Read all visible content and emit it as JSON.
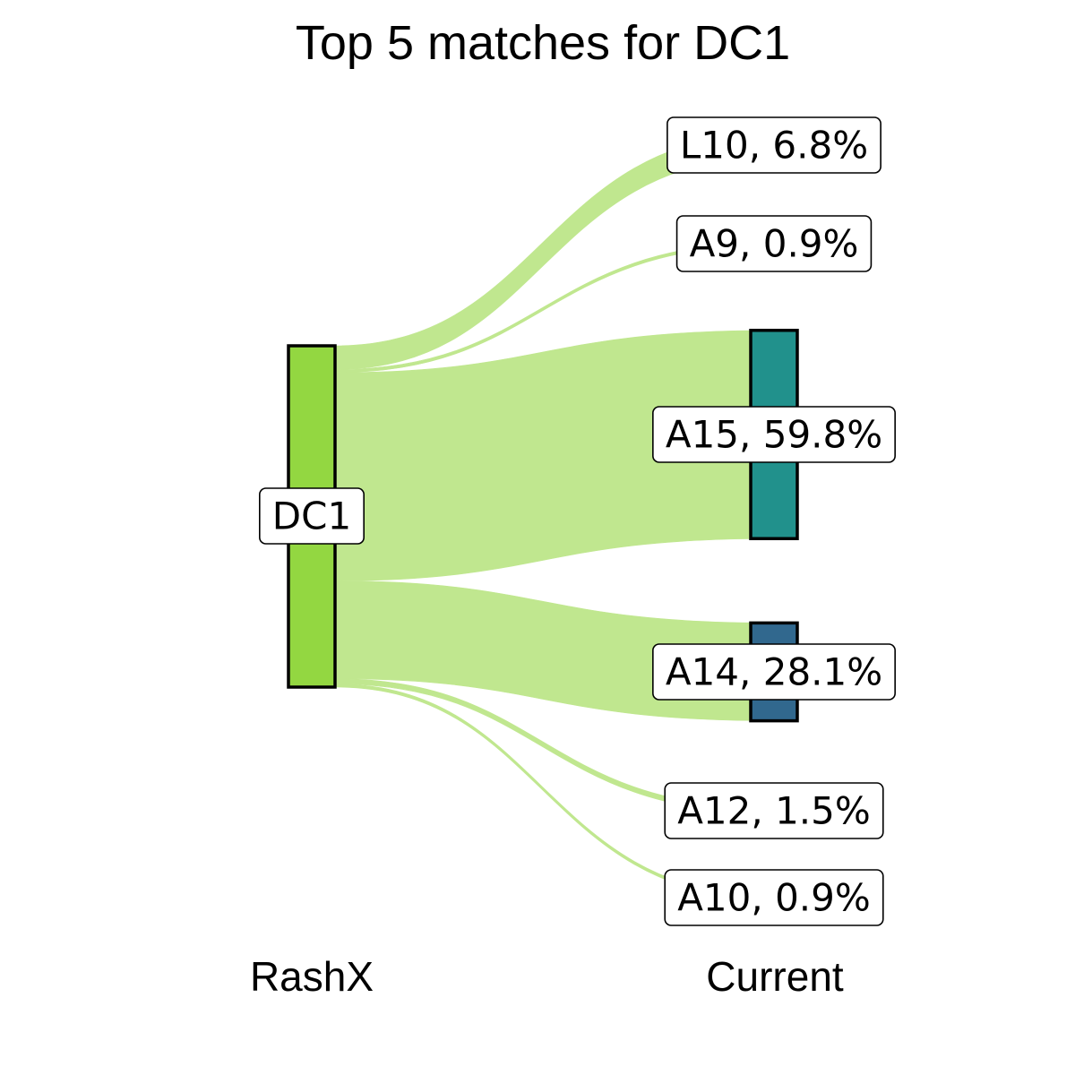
{
  "chart_data": {
    "type": "sankey",
    "title": "Top 5 matches for DC1",
    "axis_labels": [
      "RashX",
      "Current"
    ],
    "source": {
      "name": "DC1",
      "color": "#93d741"
    },
    "flow_color": "#c0e78f",
    "targets": [
      {
        "name": "L10",
        "percent": 6.8,
        "label": "L10, 6.8%",
        "show_node": false,
        "color": ""
      },
      {
        "name": "A9",
        "percent": 0.9,
        "label": "A9, 0.9%",
        "show_node": false,
        "color": ""
      },
      {
        "name": "A15",
        "percent": 59.8,
        "label": "A15, 59.8%",
        "show_node": true,
        "color": "#21918c"
      },
      {
        "name": "A14",
        "percent": 28.1,
        "label": "A14, 28.1%",
        "show_node": true,
        "color": "#31688e"
      },
      {
        "name": "A12",
        "percent": 1.5,
        "label": "A12, 1.5%",
        "show_node": false,
        "color": ""
      },
      {
        "name": "A10",
        "percent": 0.9,
        "label": "A10, 0.9%",
        "show_node": false,
        "color": ""
      }
    ]
  }
}
